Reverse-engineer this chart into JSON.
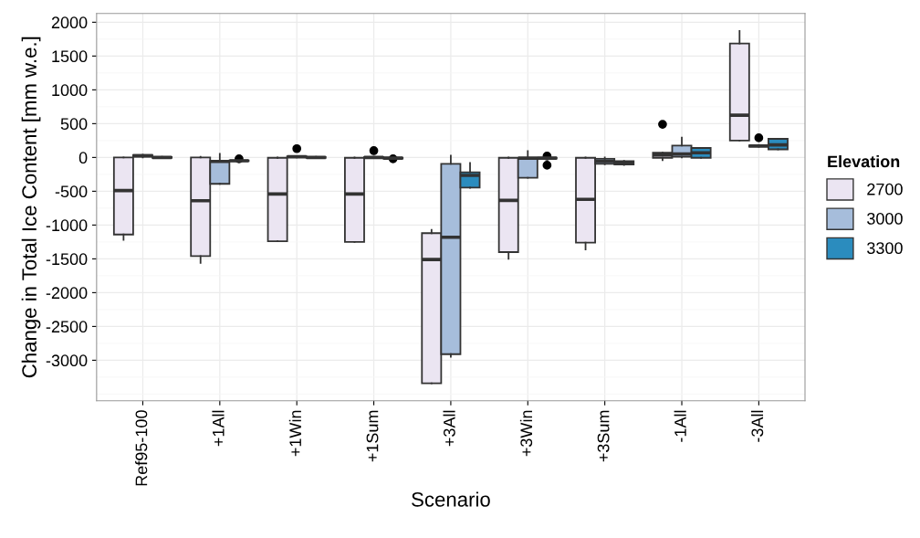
{
  "chart_data": {
    "type": "box",
    "xlabel": "Scenario",
    "ylabel": "Change in Total Ice Content [mm w.e.]",
    "legend_title": "Elevation",
    "legend": "right",
    "grid": true,
    "categories": [
      "Ref95-100",
      "+1All",
      "+1Win",
      "+1Sum",
      "+3All",
      "+3Win",
      "+3Sum",
      "-1All",
      "-3All"
    ],
    "ylim": [
      -3600,
      2130
    ],
    "yticks": [
      -3000,
      -2500,
      -2000,
      -1500,
      -1000,
      -500,
      0,
      500,
      1000,
      1500,
      2000
    ],
    "series": [
      {
        "name": "2700",
        "color": "#ebe5f2",
        "boxes": [
          {
            "low": -1220,
            "q1": -1140,
            "median": -490,
            "q3": 0,
            "high": 0
          },
          {
            "low": -1560,
            "q1": -1460,
            "median": -640,
            "q3": 0,
            "high": 10
          },
          {
            "low": -1240,
            "q1": -1240,
            "median": -540,
            "q3": -5,
            "high": 0
          },
          {
            "low": -1250,
            "q1": -1250,
            "median": -540,
            "q3": -5,
            "high": 0
          },
          {
            "low": -3340,
            "q1": -3340,
            "median": -1510,
            "q3": -1120,
            "high": -1070
          },
          {
            "low": -1500,
            "q1": -1400,
            "median": -635,
            "q3": -5,
            "high": 0
          },
          {
            "low": -1360,
            "q1": -1260,
            "median": -620,
            "q3": -5,
            "high": 0
          },
          {
            "low": -40,
            "q1": -5,
            "median": 35,
            "q3": 70,
            "high": 70,
            "outliers": [
              490
            ]
          },
          {
            "low": 250,
            "q1": 250,
            "median": 625,
            "q3": 1685,
            "high": 1870
          }
        ]
      },
      {
        "name": "3000",
        "color": "#a6bddb",
        "boxes": [
          {
            "low": 0,
            "q1": 10,
            "median": 25,
            "q3": 35,
            "high": 40
          },
          {
            "low": -390,
            "q1": -390,
            "median": -60,
            "q3": -50,
            "high": 55
          },
          {
            "low": 0,
            "q1": 5,
            "median": 10,
            "q3": 15,
            "high": 20,
            "outliers": [
              130
            ]
          },
          {
            "low": -10,
            "q1": -5,
            "median": 0,
            "q3": 5,
            "high": 10,
            "outliers": [
              100
            ]
          },
          {
            "low": -2950,
            "q1": -2910,
            "median": -1180,
            "q3": -95,
            "high": 25
          },
          {
            "low": -300,
            "q1": -300,
            "median": -10,
            "q3": -10,
            "high": 95
          },
          {
            "low": -100,
            "q1": -95,
            "median": -60,
            "q3": -20,
            "high": 0
          },
          {
            "low": 0,
            "q1": 10,
            "median": 50,
            "q3": 175,
            "high": 295
          },
          {
            "low": 160,
            "q1": 160,
            "median": 170,
            "q3": 180,
            "high": 185,
            "outliers": [
              290
            ]
          }
        ]
      },
      {
        "name": "3300",
        "color": "#2b8cbe",
        "boxes": [
          {
            "low": -10,
            "q1": -5,
            "median": 0,
            "q3": 5,
            "high": 10
          },
          {
            "low": -60,
            "q1": -55,
            "median": -50,
            "q3": -45,
            "high": -40,
            "outliers": [
              -20
            ]
          },
          {
            "low": -10,
            "q1": -5,
            "median": 0,
            "q3": 5,
            "high": 10
          },
          {
            "low": -20,
            "q1": -15,
            "median": -10,
            "q3": -5,
            "high": 0,
            "outliers": [
              -20
            ]
          },
          {
            "low": -450,
            "q1": -445,
            "median": -265,
            "q3": -220,
            "high": -80
          },
          {
            "low": -20,
            "q1": -15,
            "median": -10,
            "q3": -5,
            "high": 0,
            "outliers": [
              20,
              -115
            ]
          },
          {
            "low": -110,
            "q1": -105,
            "median": -80,
            "q3": -55,
            "high": -50
          },
          {
            "low": -5,
            "q1": -5,
            "median": 70,
            "q3": 140,
            "high": 140
          },
          {
            "low": 120,
            "q1": 120,
            "median": 185,
            "q3": 275,
            "high": 275
          }
        ]
      }
    ]
  }
}
